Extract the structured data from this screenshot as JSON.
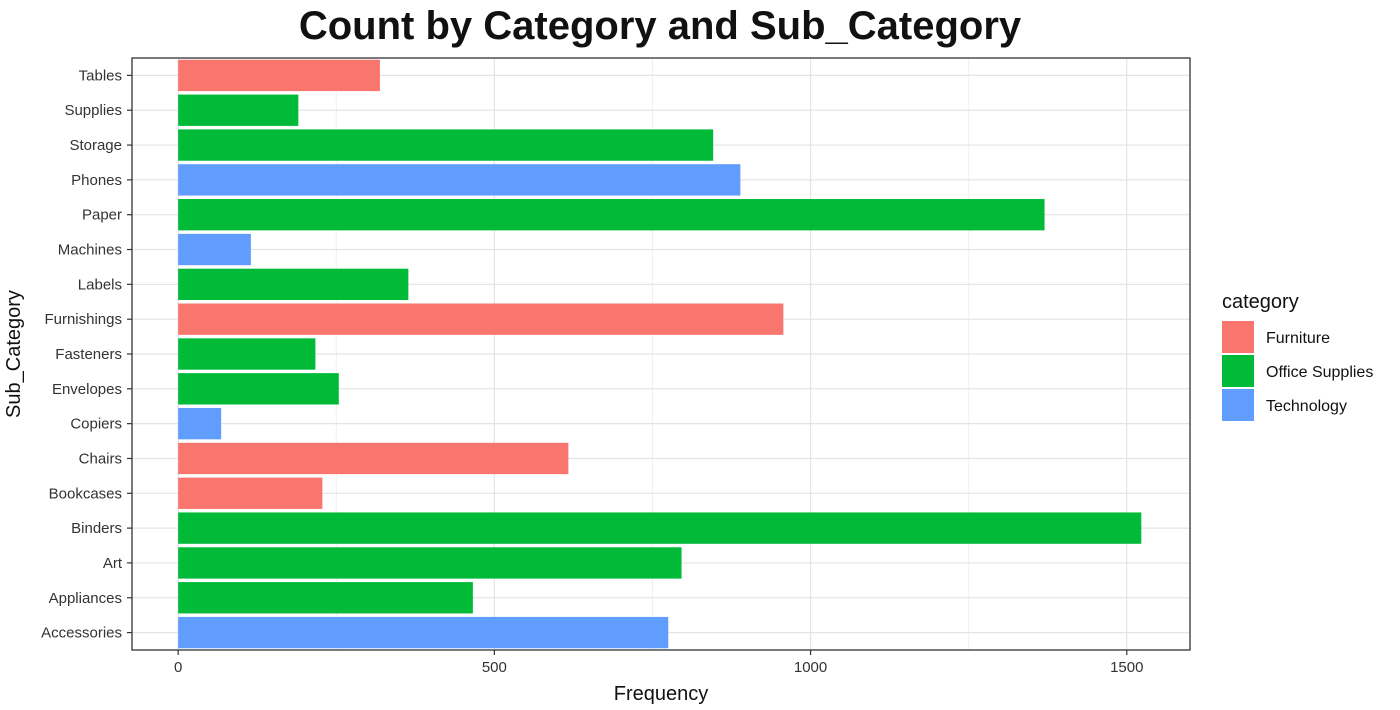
{
  "chart_data": {
    "type": "bar",
    "orientation": "horizontal",
    "title": "Count by Category and Sub_Category",
    "xlabel": "Frequency",
    "ylabel": "Sub_Category",
    "xlim": [
      -73,
      1600
    ],
    "xticks": [
      0,
      500,
      1000,
      1500
    ],
    "grid": true,
    "legend": {
      "title": "category",
      "position": "right",
      "entries": [
        {
          "name": "Furniture",
          "color": "#F8766D"
        },
        {
          "name": "Office Supplies",
          "color": "#00BA38"
        },
        {
          "name": "Technology",
          "color": "#619CFF"
        }
      ]
    },
    "categories": [
      "Accessories",
      "Appliances",
      "Art",
      "Binders",
      "Bookcases",
      "Chairs",
      "Copiers",
      "Envelopes",
      "Fasteners",
      "Furnishings",
      "Labels",
      "Machines",
      "Paper",
      "Phones",
      "Storage",
      "Supplies",
      "Tables"
    ],
    "values": [
      775,
      466,
      796,
      1523,
      228,
      617,
      68,
      254,
      217,
      957,
      364,
      115,
      1370,
      889,
      846,
      190,
      319
    ],
    "bar_category": [
      "Technology",
      "Office Supplies",
      "Office Supplies",
      "Office Supplies",
      "Furniture",
      "Furniture",
      "Technology",
      "Office Supplies",
      "Office Supplies",
      "Furniture",
      "Office Supplies",
      "Technology",
      "Office Supplies",
      "Technology",
      "Office Supplies",
      "Office Supplies",
      "Furniture"
    ]
  }
}
